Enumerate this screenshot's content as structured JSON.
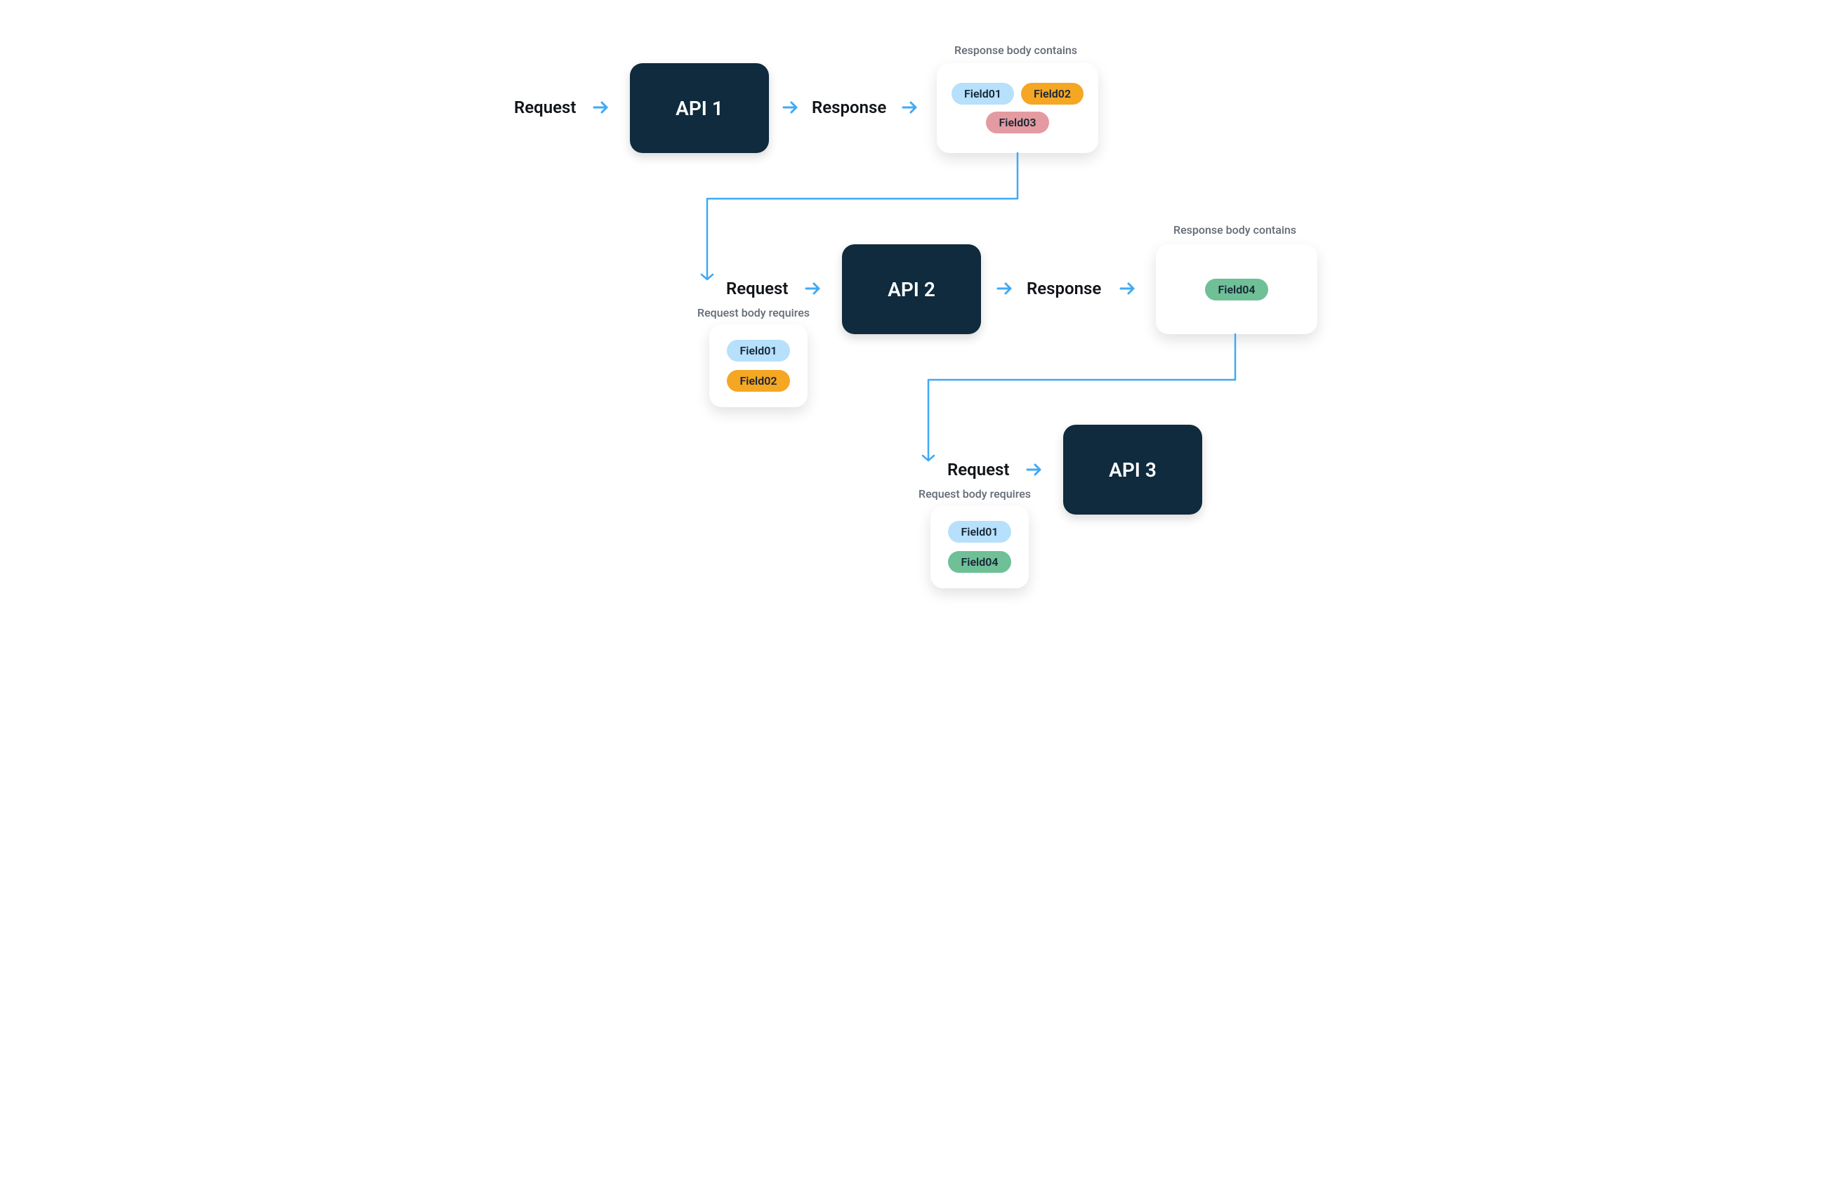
{
  "diagram": {
    "type": "flowchart",
    "background_color": "#ffffff",
    "text_color": "#111418",
    "caption_color": "#636b75",
    "arrow_color": "#3fa9f5",
    "connector_color": "#3fa9f5",
    "connector_stroke_width": 2.5,
    "arrow_stroke_width": 3,
    "api_box": {
      "bg_color": "#0f2b3d",
      "text_color": "#ffffff",
      "font_size": 28,
      "radius": 18,
      "width": 198,
      "height": 128
    },
    "card": {
      "bg_color": "#ffffff",
      "radius": 18,
      "shadow": "0 8px 20px rgba(0,0,0,0.12)"
    },
    "pill_colors": {
      "field01": "#b6e0fb",
      "field02": "#f5a623",
      "field03": "#e39aa0",
      "field04": "#6fbf97"
    },
    "label_font_size": 24,
    "caption_font_size": 16,
    "row1": {
      "request_label": "Request",
      "api_label": "API 1",
      "response_label": "Response",
      "response_caption": "Response body contains",
      "response_fields": [
        {
          "text": "Field01",
          "color_key": "field01"
        },
        {
          "text": "Field02",
          "color_key": "field02"
        },
        {
          "text": "Field03",
          "color_key": "field03"
        }
      ]
    },
    "row2": {
      "request_label": "Request",
      "request_caption": "Request body requires",
      "request_fields": [
        {
          "text": "Field01",
          "color_key": "field01"
        },
        {
          "text": "Field02",
          "color_key": "field02"
        }
      ],
      "api_label": "API 2",
      "response_label": "Response",
      "response_caption": "Response body contains",
      "response_fields": [
        {
          "text": "Field04",
          "color_key": "field04"
        }
      ]
    },
    "row3": {
      "request_label": "Request",
      "request_caption": "Request body requires",
      "request_fields": [
        {
          "text": "Field01",
          "color_key": "field01"
        },
        {
          "text": "Field04",
          "color_key": "field04"
        }
      ],
      "api_label": "API 3"
    }
  }
}
